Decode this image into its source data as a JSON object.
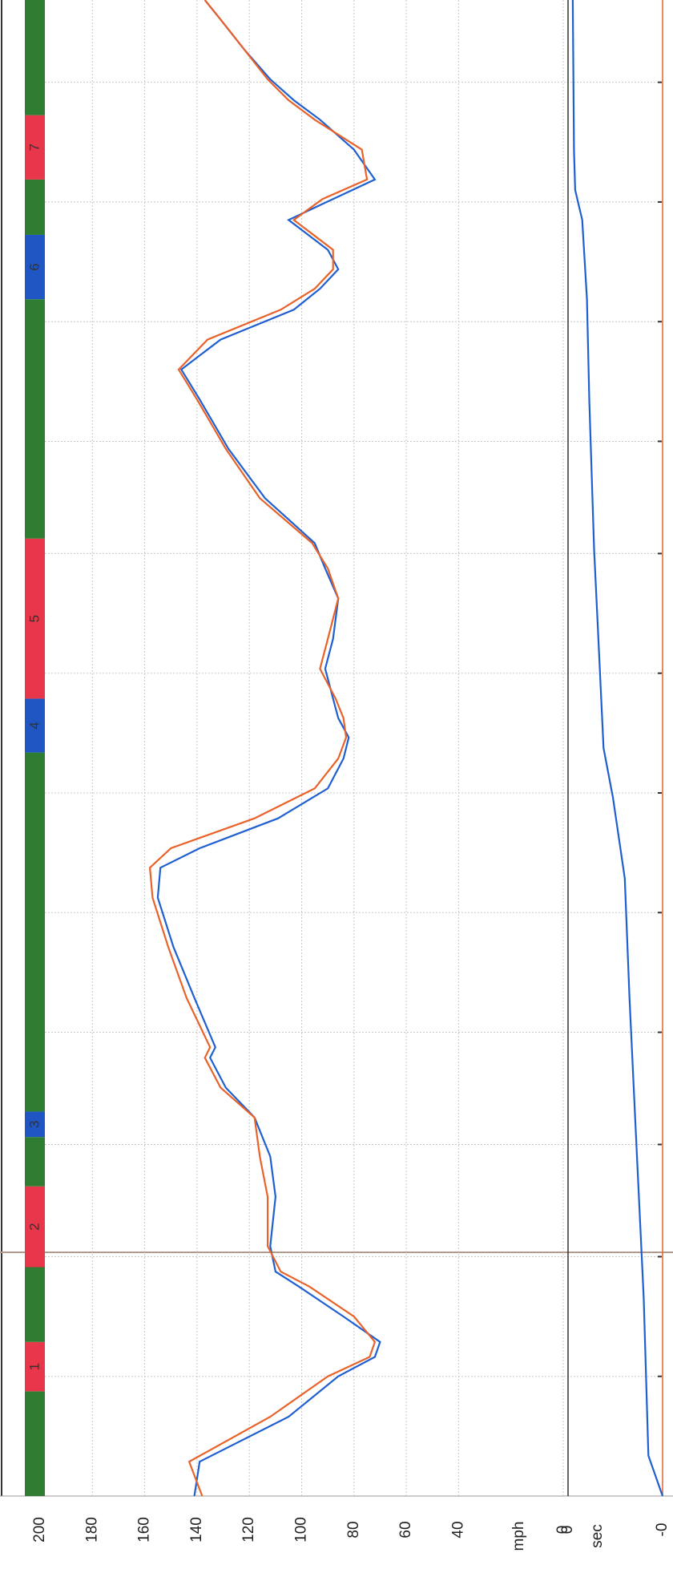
{
  "chart_data": {
    "type": "line",
    "y_label": "mph",
    "y2_label": "sec",
    "xlim": [
      0,
      100
    ],
    "xticks": [
      8,
      16,
      23.5,
      31,
      39,
      47,
      55,
      63,
      70.5,
      78.5,
      86.5,
      94.5
    ],
    "ylim": [
      0,
      200
    ],
    "yticks": [
      200,
      180,
      160,
      140,
      120,
      100,
      80,
      60,
      40,
      0
    ],
    "y2lim": [
      0,
      -0.4
    ],
    "y2ticks": [
      0,
      {
        "value": -0.4,
        "label": "-0"
      }
    ],
    "grid": true,
    "x": [
      0,
      2.3,
      5.3,
      8,
      9.3,
      10.3,
      12,
      14,
      15,
      16.7,
      20,
      22.7,
      25.3,
      27.3,
      29.3,
      30,
      33.3,
      36.7,
      40,
      42,
      43.3,
      45.3,
      47.3,
      49.3,
      50.7,
      52,
      53.3,
      55.3,
      57.3,
      60,
      62,
      63.7,
      66.7,
      70,
      73.3,
      75.3,
      77.3,
      79.3,
      80.7,
      82,
      83.3,
      85.3,
      86.7,
      88,
      90,
      92,
      93.3,
      94.7,
      96.7,
      98.7,
      100
    ],
    "series": [
      {
        "color": "#1f5fd0",
        "values": [
          141,
          139,
          105,
          86,
          72,
          70,
          84,
          101,
          110,
          112,
          110,
          112,
          118,
          129,
          135,
          133,
          141,
          149,
          155,
          154,
          139,
          109,
          90,
          84,
          82,
          86,
          88,
          91,
          88,
          86,
          91,
          95,
          114,
          128,
          139,
          146,
          131,
          103,
          93,
          86,
          90,
          105,
          88,
          72,
          80,
          93,
          103,
          112,
          122,
          131,
          137
        ]
      },
      {
        "color": "#e8622a",
        "values": [
          138,
          143,
          112,
          90,
          74,
          72,
          80,
          97,
          108,
          113,
          113,
          116,
          118,
          131,
          137,
          135,
          144,
          151,
          157,
          158,
          150,
          118,
          95,
          86,
          83,
          84,
          87,
          93,
          90,
          86,
          90,
          96,
          116,
          129,
          140,
          147,
          136,
          108,
          95,
          88,
          88,
          103,
          92,
          75,
          77,
          95,
          105,
          113,
          122,
          131,
          137
        ]
      }
    ],
    "delta": {
      "color": "#1f5fd0",
      "axis": "y2",
      "x": [
        0,
        2.7,
        13.3,
        23.3,
        33.3,
        41.3,
        46.7,
        50,
        56.7,
        63.3,
        73.3,
        80,
        85.3,
        87.3,
        90,
        100
      ],
      "values": [
        -0.4,
        -0.34,
        -0.32,
        -0.29,
        -0.26,
        -0.24,
        -0.19,
        -0.15,
        -0.13,
        -0.11,
        -0.09,
        -0.08,
        -0.06,
        -0.03,
        -0.025,
        -0.02
      ]
    },
    "segments": [
      {
        "start": 0,
        "end": 7,
        "color": "#2e7d32"
      },
      {
        "start": 7,
        "end": 10.3,
        "color": "#e8364a",
        "label": "1"
      },
      {
        "start": 10.3,
        "end": 15.3,
        "color": "#2e7d32"
      },
      {
        "start": 15.3,
        "end": 20.7,
        "color": "#e8364a",
        "label": "2"
      },
      {
        "start": 20.7,
        "end": 24,
        "color": "#2e7d32"
      },
      {
        "start": 24,
        "end": 25.7,
        "color": "#1f56c4",
        "label": "3"
      },
      {
        "start": 25.7,
        "end": 49.7,
        "color": "#2e7d32"
      },
      {
        "start": 49.7,
        "end": 53.3,
        "color": "#1f56c4",
        "label": "4"
      },
      {
        "start": 53.3,
        "end": 64,
        "color": "#e8364a",
        "label": "5"
      },
      {
        "start": 64,
        "end": 80,
        "color": "#2e7d32"
      },
      {
        "start": 80,
        "end": 84.3,
        "color": "#1f56c4",
        "label": "6"
      },
      {
        "start": 84.3,
        "end": 88,
        "color": "#2e7d32"
      },
      {
        "start": 88,
        "end": 92.3,
        "color": "#e8364a",
        "label": "7"
      },
      {
        "start": 92.3,
        "end": 100,
        "color": "#2e7d32"
      }
    ]
  }
}
